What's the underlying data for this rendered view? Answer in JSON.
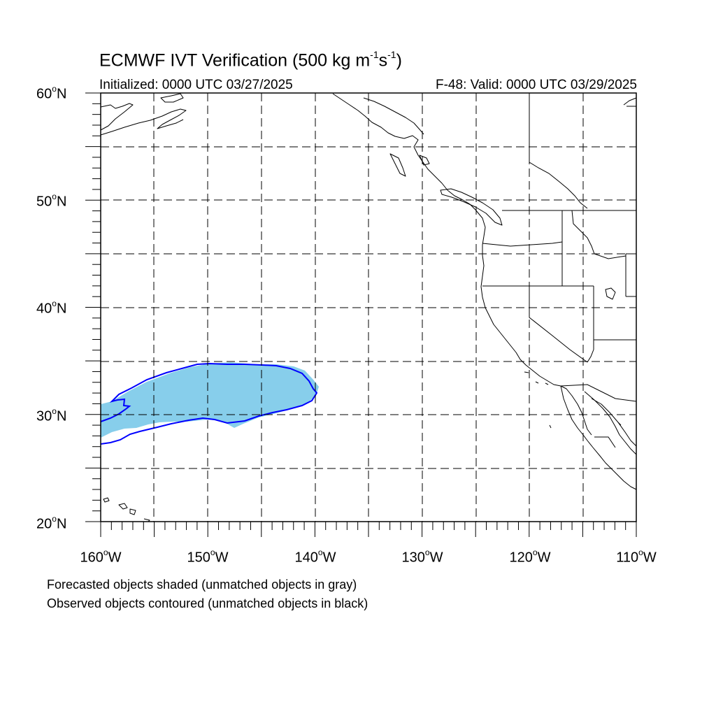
{
  "map": {
    "title": "ECMWF IVT Verification (500 kg m",
    "title_unit_exp1": "-1",
    "title_unit_s": "s",
    "title_unit_exp2": "-1",
    "title_close": ")",
    "initialized": "Initialized: 0000 UTC 03/27/2025",
    "valid": "F-48: Valid: 0000 UTC 03/29/2025",
    "lat_labels": [
      {
        "deg": "60",
        "hemi": "N"
      },
      {
        "deg": "50",
        "hemi": "N"
      },
      {
        "deg": "40",
        "hemi": "N"
      },
      {
        "deg": "30",
        "hemi": "N"
      },
      {
        "deg": "20",
        "hemi": "N"
      }
    ],
    "lon_labels": [
      {
        "deg": "160",
        "hemi": "W"
      },
      {
        "deg": "150",
        "hemi": "W"
      },
      {
        "deg": "140",
        "hemi": "W"
      },
      {
        "deg": "130",
        "hemi": "W"
      },
      {
        "deg": "120",
        "hemi": "W"
      },
      {
        "deg": "110",
        "hemi": "W"
      }
    ],
    "degree_symbol": "o",
    "extent": {
      "lon_min": -160,
      "lon_max": -110,
      "lat_min": 20,
      "lat_max": 60
    },
    "grid_spacing_deg": 5,
    "colors": {
      "forecast_fill": "#87ceeb",
      "forecast_unmatched": "#d3d3d3",
      "observed_contour": "#0000ff",
      "grid": "#000000",
      "coast": "#000000"
    },
    "notes": {
      "forecast": "Forecasted objects shaded (unmatched objects in gray)",
      "observed": "Observed objects contoured (unmatched objects in black)"
    }
  }
}
